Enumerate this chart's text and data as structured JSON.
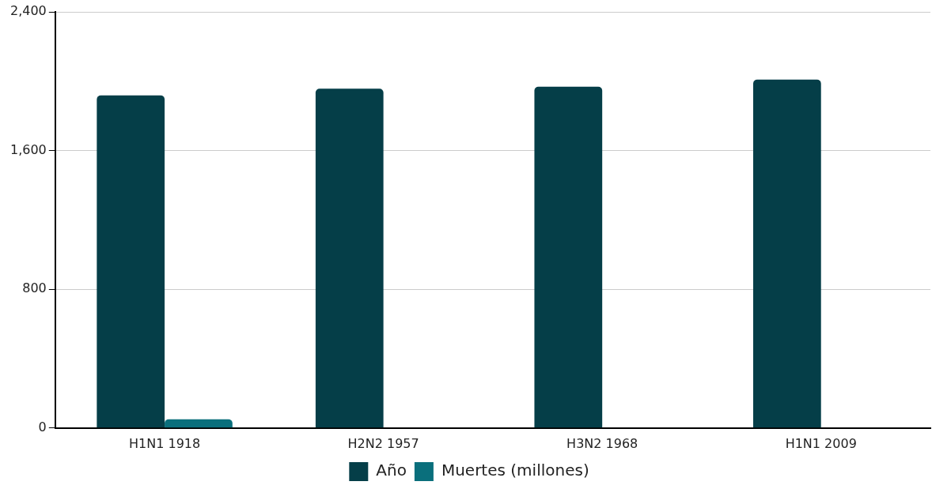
{
  "chart_data": {
    "type": "bar",
    "categories": [
      "H1N1 1918",
      "H2N2 1957",
      "H3N2 1968",
      "H1N1 2009"
    ],
    "series": [
      {
        "name": "Año",
        "color": "#053e48",
        "values": [
          1918,
          1957,
          1968,
          2009
        ]
      },
      {
        "name": "Muertes (millones)",
        "color": "#0a6f7c",
        "values": [
          50,
          null,
          null,
          null
        ]
      }
    ],
    "ylim": [
      0,
      2400
    ],
    "yticks": [
      0,
      800,
      {
        "value": 1600,
        "label": "1,600"
      },
      {
        "value": 2400,
        "label": "2,400"
      }
    ],
    "grid": "y",
    "legend": "bottom"
  }
}
